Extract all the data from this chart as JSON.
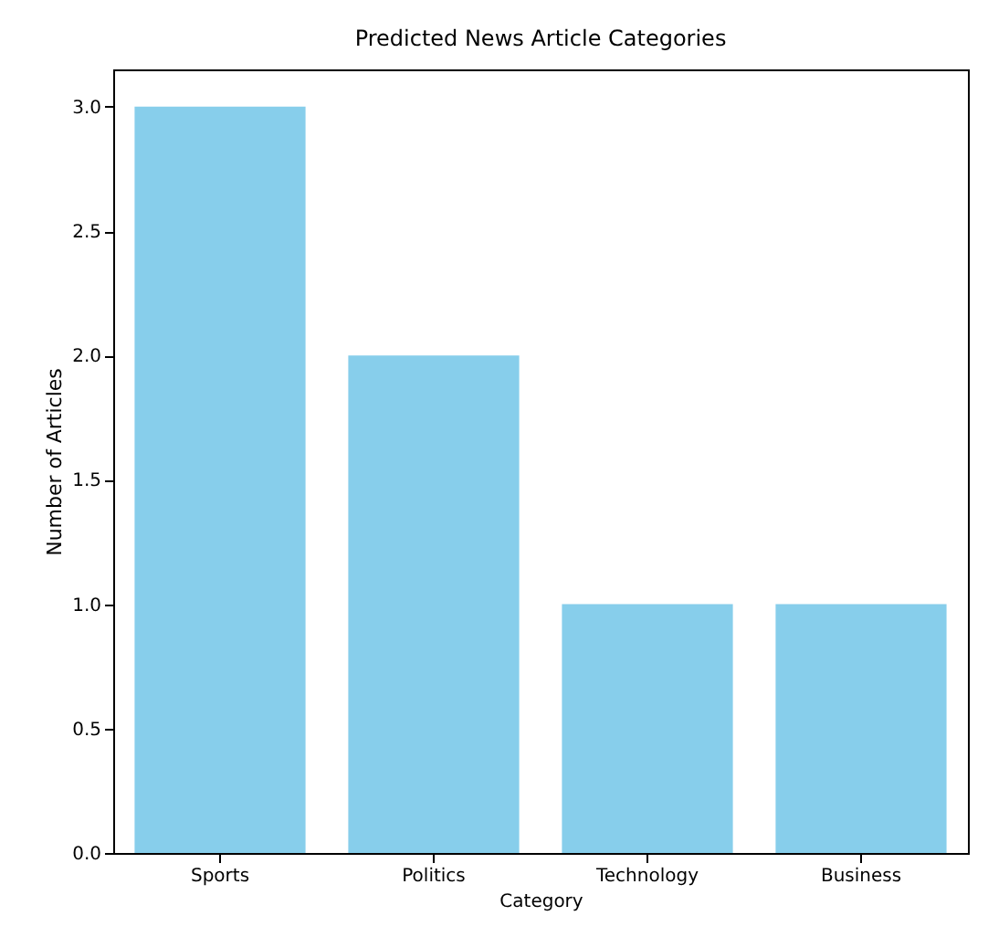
{
  "chart_data": {
    "type": "bar",
    "title": "Predicted News Article Categories",
    "xlabel": "Category",
    "ylabel": "Number of Articles",
    "categories": [
      "Sports",
      "Politics",
      "Technology",
      "Business"
    ],
    "values": [
      3,
      2,
      1,
      1
    ],
    "color": "#87ceeb",
    "ylim": [
      0,
      3.15
    ],
    "yticks": [
      {
        "value": 0,
        "label": "0.0"
      },
      {
        "value": 0.5,
        "label": "0.5"
      },
      {
        "value": 1,
        "label": "1.0"
      },
      {
        "value": 1.5,
        "label": "1.5"
      },
      {
        "value": 2,
        "label": "2.0"
      },
      {
        "value": 2.5,
        "label": "2.5"
      },
      {
        "value": 3,
        "label": "3.0"
      }
    ],
    "grid": false
  }
}
